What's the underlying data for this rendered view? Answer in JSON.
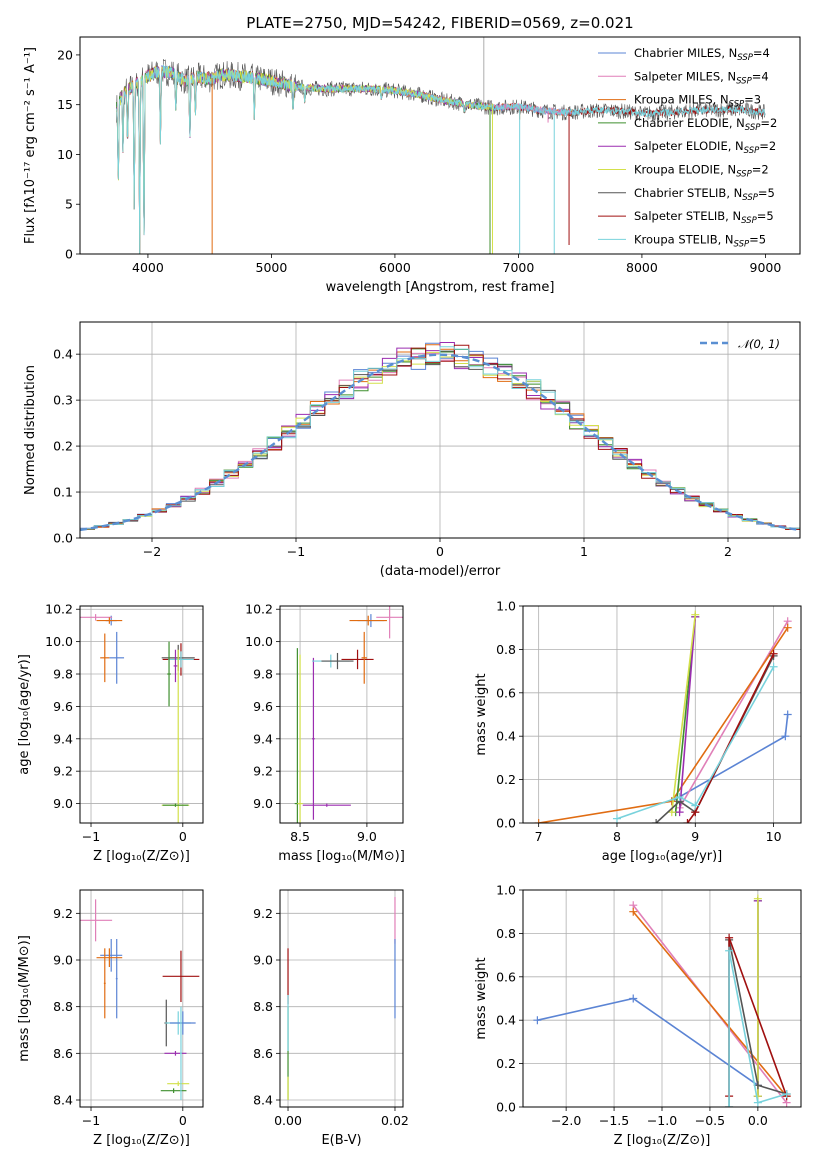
{
  "title": "PLATE=2750, MJD=54242, FIBERID=0569, z=0.021",
  "colors": {
    "Chabrier MILES": "#5b84d4",
    "Salpeter MILES": "#e07fb8",
    "Kroupa MILES": "#e06c12",
    "Chabrier ELODIE": "#3f8f2f",
    "Salpeter ELODIE": "#9b2db0",
    "Kroupa ELODIE": "#d3e04a",
    "Chabrier STELIB": "#555555",
    "Salpeter STELIB": "#a01010",
    "Kroupa STELIB": "#78d2dc"
  },
  "chart_data": [
    {
      "id": "spectrum",
      "type": "line",
      "title": "PLATE=2750, MJD=54242, FIBERID=0569, z=0.021",
      "xlabel": "wavelength [Angstrom, rest frame]",
      "ylabel": "Flux [fλ10⁻¹⁷ erg cm⁻² s⁻¹ A⁻¹]",
      "xlim": [
        3450,
        9280
      ],
      "ylim": [
        0,
        21.8
      ],
      "xticks": [
        4000,
        5000,
        6000,
        7000,
        8000,
        9000
      ],
      "yticks": [
        0,
        5,
        10,
        15,
        20
      ],
      "grid": false,
      "legend_position": "top-right",
      "legend": [
        {
          "label": "Chabrier MILES, N",
          "sub": "SSP",
          "tail": "=4"
        },
        {
          "label": "Salpeter MILES, N",
          "sub": "SSP",
          "tail": "=4"
        },
        {
          "label": "Kroupa MILES, N",
          "sub": "SSP",
          "tail": "=3"
        },
        {
          "label": "Chabrier ELODIE, N",
          "sub": "SSP",
          "tail": "=2"
        },
        {
          "label": "Salpeter ELODIE, N",
          "sub": "SSP",
          "tail": "=2"
        },
        {
          "label": "Kroupa ELODIE, N",
          "sub": "SSP",
          "tail": "=2"
        },
        {
          "label": "Chabrier STELIB, N",
          "sub": "SSP",
          "tail": "=5"
        },
        {
          "label": "Salpeter STELIB, N",
          "sub": "SSP",
          "tail": "=5"
        },
        {
          "label": "Kroupa STELIB, N",
          "sub": "SSP",
          "tail": "=5"
        }
      ],
      "continuum": [
        [
          3740,
          14.5
        ],
        [
          3800,
          16.2
        ],
        [
          3900,
          17.0
        ],
        [
          4000,
          17.9
        ],
        [
          4100,
          18.4
        ],
        [
          4200,
          18.2
        ],
        [
          4300,
          17.4
        ],
        [
          4400,
          17.8
        ],
        [
          4500,
          17.6
        ],
        [
          4600,
          18.0
        ],
        [
          4800,
          17.8
        ],
        [
          5000,
          17.4
        ],
        [
          5200,
          16.8
        ],
        [
          5400,
          16.6
        ],
        [
          5600,
          16.6
        ],
        [
          5800,
          16.6
        ],
        [
          6000,
          16.4
        ],
        [
          6200,
          16.0
        ],
        [
          6400,
          15.4
        ],
        [
          6600,
          15.0
        ],
        [
          6800,
          14.7
        ],
        [
          7000,
          14.8
        ],
        [
          7200,
          14.4
        ],
        [
          7400,
          14.2
        ],
        [
          7600,
          14.4
        ],
        [
          7800,
          14.4
        ],
        [
          8000,
          14.1
        ],
        [
          8200,
          14.2
        ],
        [
          8400,
          14.4
        ],
        [
          8600,
          14.5
        ],
        [
          8800,
          14.5
        ],
        [
          9000,
          14.2
        ]
      ],
      "absorption": [
        [
          3760,
          6.5
        ],
        [
          3798,
          9.5
        ],
        [
          3835,
          10.5
        ],
        [
          3889,
          4.5
        ],
        [
          3933,
          0
        ],
        [
          3968,
          0
        ],
        [
          4101,
          11
        ],
        [
          4226,
          14
        ],
        [
          4340,
          11
        ],
        [
          4384,
          13.5
        ],
        [
          4861,
          13.5
        ],
        [
          5175,
          14
        ],
        [
          5270,
          15
        ],
        [
          5890,
          15.4
        ],
        [
          6563,
          14.1
        ]
      ],
      "dropouts": [
        {
          "series": "Kroupa MILES",
          "x": 4520,
          "y": 0
        },
        {
          "series": "Kroupa MILES",
          "x": 7010,
          "y": 13.5
        },
        {
          "series": "Chabrier ELODIE",
          "x": 6770,
          "y": 0
        },
        {
          "series": "Kroupa ELODIE",
          "x": 6790,
          "y": 0
        },
        {
          "series": "Kroupa STELIB",
          "x": 7010,
          "y": 0
        },
        {
          "series": "Kroupa STELIB",
          "x": 7290,
          "y": 0
        },
        {
          "series": "Salpeter STELIB",
          "x": 7410,
          "y": 0.9
        },
        {
          "series": "Salpeter MILES",
          "x": 7240,
          "y": 13.2
        },
        {
          "series": "Kroupa MILES",
          "x": 7430,
          "y": 14.4
        }
      ],
      "spike": {
        "x": 6720,
        "y": 21.8
      }
    },
    {
      "id": "histogram",
      "type": "bar",
      "xlabel": "(data-model)/error",
      "ylabel": "Normed distribution",
      "xlim": [
        -2.5,
        2.5
      ],
      "ylim": [
        0,
        0.47
      ],
      "xticks": [
        -2,
        -1,
        0,
        1,
        2
      ],
      "yticks": [
        0.0,
        0.1,
        0.2,
        0.3,
        0.4
      ],
      "grid": true,
      "bin_width": 0.1,
      "legend_position": "top-right",
      "reference": {
        "label": "𝒩(0, 1)",
        "mean": 0,
        "sigma": 1,
        "color": "#5a8fd2"
      }
    },
    {
      "id": "age-vs-z",
      "type": "scatter",
      "xlabel": "Z [log₁₀(Z/Z⊙)]",
      "ylabel": "age  [log₁₀(age/yr)]",
      "xlim": [
        -1.12,
        0.22
      ],
      "ylim": [
        8.88,
        10.22
      ],
      "xticks": [
        -1,
        0
      ],
      "yticks": [
        9.0,
        9.2,
        9.4,
        9.6,
        9.8,
        10.0,
        10.2
      ],
      "grid": true,
      "points": [
        {
          "series": "Chabrier MILES",
          "x": -0.72,
          "y": 9.9,
          "xerr": 0.08,
          "yerr": 0.16
        },
        {
          "series": "Chabrier MILES",
          "x": -0.78,
          "y": 10.13,
          "xerr": 0.06,
          "yerr": 0.03
        },
        {
          "series": "Salpeter MILES",
          "x": -0.95,
          "y": 10.15,
          "xerr": 0.18,
          "yerr": 0.02
        },
        {
          "series": "Kroupa MILES",
          "x": -0.8,
          "y": 10.13,
          "xerr": 0.14,
          "yerr": 0.02
        },
        {
          "series": "Kroupa MILES",
          "x": -0.85,
          "y": 9.9,
          "xerr": 0.05,
          "yerr": 0.15
        },
        {
          "series": "Salpeter STELIB",
          "x": -0.02,
          "y": 9.89,
          "xerr": 0.2,
          "yerr": 0.1
        },
        {
          "series": "Chabrier STELIB",
          "x": -0.05,
          "y": 9.9,
          "xerr": 0.18,
          "yerr": 0.08
        },
        {
          "series": "Kroupa STELIB",
          "x": -0.02,
          "y": 9.89,
          "xerr": 0.14,
          "yerr": 0.05
        },
        {
          "series": "Chabrier ELODIE",
          "x": -0.15,
          "y": 9.8,
          "xerr": 0.02,
          "yerr": 0.2
        },
        {
          "series": "Salpeter ELODIE",
          "x": -0.08,
          "y": 9.85,
          "xerr": 0.02,
          "yerr": 0.1
        },
        {
          "series": "Kroupa ELODIE",
          "x": -0.05,
          "y": 9.4,
          "xerr": 0.01,
          "yerr": 0.55
        },
        {
          "series": "Kroupa ELODIE",
          "x": -0.08,
          "y": 8.99,
          "xerr": 0.15,
          "yerr": 0.01
        },
        {
          "series": "Chabrier ELODIE",
          "x": -0.08,
          "y": 8.99,
          "xerr": 0.14,
          "yerr": 0.01
        }
      ]
    },
    {
      "id": "age-vs-mass",
      "type": "scatter",
      "xlabel": "mass [log₁₀(M/M⊙)]",
      "ylabel": "",
      "xlim": [
        8.35,
        9.27
      ],
      "ylim": [
        8.88,
        10.22
      ],
      "xticks": [
        8.5,
        9.0
      ],
      "yticks": [
        9.0,
        9.2,
        9.4,
        9.6,
        9.8,
        10.0,
        10.2
      ],
      "grid": true,
      "points": [
        {
          "series": "Chabrier ELODIE",
          "x": 8.48,
          "y": 9.0,
          "xerr": 0.02,
          "yerr": 0.96
        },
        {
          "series": "Kroupa ELODIE",
          "x": 8.5,
          "y": 9.0,
          "xerr": 0.02,
          "yerr": 0.92
        },
        {
          "series": "Salpeter ELODIE",
          "x": 8.6,
          "y": 9.4,
          "xerr": 0.01,
          "yerr": 0.5
        },
        {
          "series": "Salpeter ELODIE",
          "x": 8.7,
          "y": 8.99,
          "xerr": 0.18,
          "yerr": 0.01
        },
        {
          "series": "Kroupa STELIB",
          "x": 8.73,
          "y": 9.88,
          "xerr": 0.14,
          "yerr": 0.04
        },
        {
          "series": "Chabrier STELIB",
          "x": 8.78,
          "y": 9.88,
          "xerr": 0.12,
          "yerr": 0.05
        },
        {
          "series": "Salpeter STELIB",
          "x": 8.93,
          "y": 9.89,
          "xerr": 0.12,
          "yerr": 0.06
        },
        {
          "series": "Chabrier MILES",
          "x": 9.03,
          "y": 10.13,
          "xerr": 0.1,
          "yerr": 0.04
        },
        {
          "series": "Kroupa MILES",
          "x": 9.01,
          "y": 10.13,
          "xerr": 0.14,
          "yerr": 0.03
        },
        {
          "series": "Salpeter MILES",
          "x": 9.17,
          "y": 10.15,
          "xerr": 0.1,
          "yerr": 0.13
        },
        {
          "series": "Kroupa MILES",
          "x": 8.98,
          "y": 9.9,
          "xerr": 0.02,
          "yerr": 0.16
        }
      ]
    },
    {
      "id": "weight-vs-age",
      "type": "line",
      "xlabel": "age  [log₁₀(age/yr)]",
      "ylabel": "mass weight",
      "xlim": [
        6.8,
        10.35
      ],
      "ylim": [
        0,
        1.0
      ],
      "xticks": [
        7,
        8,
        9,
        10
      ],
      "yticks": [
        0.0,
        0.2,
        0.4,
        0.6,
        0.8,
        1.0
      ],
      "grid": true,
      "series": [
        {
          "name": "Chabrier MILES",
          "x": [
            8.7,
            10.15,
            10.18
          ],
          "y": [
            0.1,
            0.4,
            0.5
          ]
        },
        {
          "name": "Salpeter MILES",
          "x": [
            8.8,
            10.18
          ],
          "y": [
            0.07,
            0.93
          ]
        },
        {
          "name": "Kroupa MILES",
          "x": [
            7.0,
            8.7,
            10.18
          ],
          "y": [
            0.0,
            0.1,
            0.9
          ]
        },
        {
          "name": "Chabrier ELODIE",
          "x": [
            8.75,
            9.0
          ],
          "y": [
            0.05,
            0.95
          ]
        },
        {
          "name": "Salpeter ELODIE",
          "x": [
            8.8,
            9.0
          ],
          "y": [
            0.05,
            0.95
          ]
        },
        {
          "name": "Kroupa ELODIE",
          "x": [
            8.7,
            9.0
          ],
          "y": [
            0.05,
            0.96
          ]
        },
        {
          "name": "Chabrier STELIB",
          "x": [
            8.5,
            8.8,
            9.0,
            10.0
          ],
          "y": [
            0.0,
            0.1,
            0.05,
            0.77
          ]
        },
        {
          "name": "Salpeter STELIB",
          "x": [
            8.9,
            9.0,
            10.0
          ],
          "y": [
            0.0,
            0.05,
            0.78
          ]
        },
        {
          "name": "Kroupa STELIB",
          "x": [
            8.0,
            8.8,
            9.0,
            10.0
          ],
          "y": [
            0.02,
            0.12,
            0.08,
            0.72
          ]
        }
      ]
    },
    {
      "id": "mass-vs-z",
      "type": "scatter",
      "xlabel": "Z [log₁₀(Z/Z⊙)]",
      "ylabel": "mass [log₁₀(M/M⊙)]",
      "xlim": [
        -1.12,
        0.22
      ],
      "ylim": [
        8.37,
        9.3
      ],
      "xticks": [
        -1,
        0
      ],
      "yticks": [
        8.4,
        8.6,
        8.8,
        9.0,
        9.2
      ],
      "grid": true,
      "points": [
        {
          "series": "Salpeter MILES",
          "x": -0.95,
          "y": 9.17,
          "xerr": 0.18,
          "yerr": 0.09
        },
        {
          "series": "Chabrier MILES",
          "x": -0.78,
          "y": 9.02,
          "xerr": 0.12,
          "yerr": 0.07
        },
        {
          "series": "Chabrier MILES",
          "x": -0.72,
          "y": 8.92,
          "xerr": 0.01,
          "yerr": 0.17
        },
        {
          "series": "Kroupa MILES",
          "x": -0.8,
          "y": 9.01,
          "xerr": 0.14,
          "yerr": 0.04
        },
        {
          "series": "Kroupa MILES",
          "x": -0.85,
          "y": 8.9,
          "xerr": 0.01,
          "yerr": 0.15
        },
        {
          "series": "Salpeter STELIB",
          "x": -0.02,
          "y": 8.93,
          "xerr": 0.2,
          "yerr": 0.11
        },
        {
          "series": "Chabrier STELIB",
          "x": -0.18,
          "y": 8.73,
          "xerr": 0.02,
          "yerr": 0.1
        },
        {
          "series": "Kroupa STELIB",
          "x": -0.05,
          "y": 8.73,
          "xerr": 0.14,
          "yerr": 0.05
        },
        {
          "series": "Chabrier MILES",
          "x": 0.0,
          "y": 8.73,
          "xerr": 0.14,
          "yerr": 0.05
        },
        {
          "series": "Salpeter ELODIE",
          "x": -0.08,
          "y": 8.6,
          "xerr": 0.12,
          "yerr": 0.01
        },
        {
          "series": "Kroupa ELODIE",
          "x": -0.05,
          "y": 8.47,
          "xerr": 0.12,
          "yerr": 0.01
        },
        {
          "series": "Chabrier ELODIE",
          "x": -0.1,
          "y": 8.44,
          "xerr": 0.14,
          "yerr": 0.01
        },
        {
          "series": "Kroupa STELIB",
          "x": -0.02,
          "y": 8.6,
          "xerr": 0.01,
          "yerr": 0.2
        }
      ]
    },
    {
      "id": "mass-vs-ebv",
      "type": "scatter",
      "xlabel": "E(B-V)",
      "ylabel": "",
      "xlim": [
        -0.0015,
        0.0215
      ],
      "ylim": [
        8.37,
        9.3
      ],
      "xticks": [
        0.0,
        0.02
      ],
      "xtick_labels": [
        "0.00",
        "0.02"
      ],
      "yticks": [
        8.4,
        8.6,
        8.8,
        9.0,
        9.2
      ],
      "grid": true,
      "points": [
        {
          "series": "Salpeter STELIB",
          "x": 0.0,
          "y": 8.93,
          "xerr": 0,
          "yerr": 0.12
        },
        {
          "series": "Chabrier ELODIE",
          "x": 0.0,
          "y": 8.6,
          "xerr": 0,
          "yerr": 0.2
        },
        {
          "series": "Kroupa STELIB",
          "x": 0.0,
          "y": 8.73,
          "xerr": 0,
          "yerr": 0.12
        },
        {
          "series": "Kroupa ELODIE",
          "x": 0.0,
          "y": 8.45,
          "xerr": 0,
          "yerr": 0.05
        },
        {
          "series": "Salpeter MILES",
          "x": 0.02,
          "y": 9.17,
          "xerr": 0,
          "yerr": 0.1
        },
        {
          "series": "Chabrier MILES",
          "x": 0.02,
          "y": 8.92,
          "xerr": 0,
          "yerr": 0.17
        }
      ]
    },
    {
      "id": "weight-vs-z",
      "type": "line",
      "xlabel": "Z [log₁₀(Z/Z⊙)]",
      "ylabel": "mass weight",
      "xlim": [
        -2.45,
        0.45
      ],
      "ylim": [
        0,
        1.0
      ],
      "xticks": [
        -2.0,
        -1.5,
        -1.0,
        -0.5,
        0.0
      ],
      "xtick_labels": [
        "−2.0",
        "−1.5",
        "−1.0",
        "−0.5",
        "0.0"
      ],
      "yticks": [
        0.0,
        0.2,
        0.4,
        0.6,
        0.8,
        1.0
      ],
      "grid": true,
      "series": [
        {
          "name": "Chabrier MILES",
          "x": [
            -2.3,
            -1.3,
            0.0
          ],
          "y": [
            0.4,
            0.5,
            0.1
          ]
        },
        {
          "name": "Salpeter MILES",
          "x": [
            -1.3,
            0.3
          ],
          "y": [
            0.93,
            0.02
          ]
        },
        {
          "name": "Kroupa MILES",
          "x": [
            -1.3,
            0.3
          ],
          "y": [
            0.9,
            0.05
          ]
        },
        {
          "name": "Chabrier ELODIE",
          "x": [
            0.0,
            0.0
          ],
          "y": [
            0.05,
            0.95
          ]
        },
        {
          "name": "Salpeter ELODIE",
          "x": [
            0.0,
            0.0
          ],
          "y": [
            0.05,
            0.95
          ]
        },
        {
          "name": "Kroupa ELODIE",
          "x": [
            0.0,
            0.0
          ],
          "y": [
            0.05,
            0.96
          ]
        },
        {
          "name": "Chabrier STELIB",
          "x": [
            -0.3,
            -0.3,
            0.0,
            0.3
          ],
          "y": [
            0.0,
            0.77,
            0.1,
            0.06
          ]
        },
        {
          "name": "Salpeter STELIB",
          "x": [
            -0.3,
            -0.3,
            0.3
          ],
          "y": [
            0.05,
            0.78,
            0.05
          ]
        },
        {
          "name": "Kroupa STELIB",
          "x": [
            -0.3,
            -0.3,
            0.0,
            0.3
          ],
          "y": [
            0.0,
            0.72,
            0.02,
            0.06
          ]
        }
      ]
    }
  ]
}
